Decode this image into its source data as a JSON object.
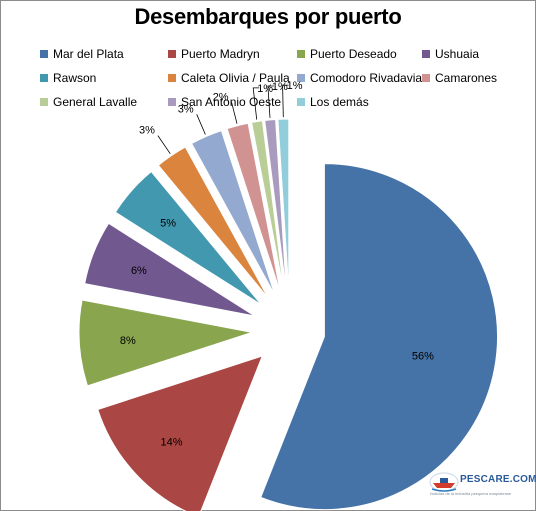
{
  "chart_data": {
    "type": "pie",
    "title": "Desembarques por puerto",
    "legend_position": "top",
    "slices": [
      {
        "label": "Mar del Plata",
        "value": 56,
        "display": "56%",
        "color": "#4572A7"
      },
      {
        "label": "Puerto Madryn",
        "value": 14,
        "display": "14%",
        "color": "#AA4643"
      },
      {
        "label": "Puerto Deseado",
        "value": 8,
        "display": "8%",
        "color": "#89A54E"
      },
      {
        "label": "Ushuaia",
        "value": 6,
        "display": "6%",
        "color": "#71588F"
      },
      {
        "label": "Rawson",
        "value": 5,
        "display": "5%",
        "color": "#4198AF"
      },
      {
        "label": "Caleta Olivia / Paula",
        "value": 3,
        "display": "3%",
        "color": "#DB843D"
      },
      {
        "label": "Comodoro Rivadavia",
        "value": 3,
        "display": "3%",
        "color": "#93A9CF"
      },
      {
        "label": "Camarones",
        "value": 2,
        "display": "2%",
        "color": "#D19392"
      },
      {
        "label": "General Lavalle",
        "value": 1,
        "display": "1%",
        "color": "#B9CD96"
      },
      {
        "label": "San Antonio Oeste",
        "value": 1,
        "display": "1%",
        "color": "#A99BBD"
      },
      {
        "label": "Los demás",
        "value": 1,
        "display": "1%",
        "color": "#92CDDC"
      }
    ]
  },
  "watermark": {
    "brand": "PESCARE.COM.AR",
    "tagline": "Noticias de la industria pesquera marplatense"
  }
}
